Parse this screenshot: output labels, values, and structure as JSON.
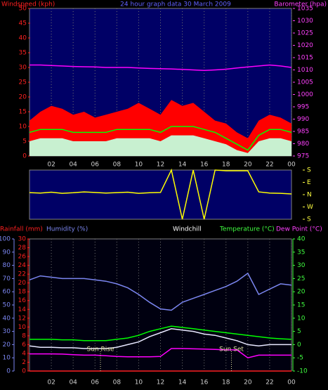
{
  "chart_data": [
    {
      "type": "line",
      "title": "24 hour graph data  30 March 2009",
      "ylabel": "Windspeed (kph)",
      "y2label": "Barometer (hpa)",
      "x": [
        0,
        1,
        2,
        3,
        4,
        5,
        6,
        7,
        8,
        9,
        10,
        11,
        12,
        13,
        14,
        15,
        16,
        17,
        18,
        19,
        20,
        21,
        22,
        23,
        24
      ],
      "xlim": [
        0,
        24
      ],
      "xticks": [
        {
          "value": 2,
          "label": "02"
        },
        {
          "value": 4,
          "label": "04"
        },
        {
          "value": 6,
          "label": "06"
        },
        {
          "value": 8,
          "label": "08"
        },
        10,
        12,
        14,
        16,
        18,
        20,
        22,
        {
          "value": 24,
          "label": "00"
        }
      ],
      "ylim": [
        0,
        50
      ],
      "yticks": [
        0,
        5,
        10,
        15,
        20,
        25,
        30,
        35,
        40,
        45,
        50
      ],
      "y2lim": [
        975,
        1035
      ],
      "y2ticks": [
        975,
        980,
        985,
        990,
        995,
        1000,
        1005,
        1010,
        1015,
        1020,
        1025,
        1030,
        1035
      ],
      "grid": true,
      "series": [
        {
          "color": "#ff0000",
          "fill": true,
          "values": [
            12,
            15,
            17,
            16,
            14,
            15,
            13,
            14,
            15,
            16,
            18,
            16,
            14,
            19,
            17,
            18,
            15,
            12,
            11,
            8,
            6,
            12,
            14,
            13,
            11
          ]
        },
        {
          "color": "#c8f0d0",
          "fill": true,
          "values": [
            5,
            6,
            6,
            6,
            5,
            5,
            5,
            5,
            6,
            6,
            6,
            6,
            5,
            7,
            7,
            7,
            6,
            5,
            4,
            2,
            1,
            5,
            6,
            6,
            5
          ]
        },
        {
          "color": "#00ff00",
          "values": [
            8,
            9,
            9,
            9,
            8,
            8,
            8,
            8,
            9,
            9,
            9,
            9,
            8,
            10,
            10,
            10,
            9,
            8,
            6,
            4,
            2,
            7,
            9,
            9,
            8
          ]
        },
        {
          "color": "#ff00ff",
          "axis": "y2",
          "values": [
            1012,
            1012,
            1011.8,
            1011.6,
            1011.4,
            1011.3,
            1011.2,
            1011,
            1011,
            1011,
            1010.8,
            1010.6,
            1010.5,
            1010.4,
            1010.2,
            1010,
            1009.8,
            1010,
            1010.3,
            1010.8,
            1011.2,
            1011.6,
            1012,
            1011.6,
            1011
          ]
        }
      ]
    },
    {
      "type": "line",
      "x": [
        0,
        1,
        2,
        3,
        4,
        5,
        6,
        7,
        8,
        9,
        10,
        11,
        12,
        13,
        14,
        15,
        16,
        17,
        18,
        19,
        20,
        21,
        22,
        23,
        24
      ],
      "xlim": [
        0,
        24
      ],
      "ylim": [
        180,
        540
      ],
      "yticks": [
        {
          "value": 540,
          "label": "S"
        },
        {
          "value": 450,
          "label": "E"
        },
        {
          "value": 360,
          "label": "N"
        },
        {
          "value": 270,
          "label": "W"
        },
        {
          "value": 180,
          "label": "S"
        }
      ],
      "series": [
        {
          "color": "#ffff00",
          "values": [
            375,
            372,
            378,
            370,
            374,
            380,
            376,
            372,
            375,
            378,
            370,
            374,
            376,
            540,
            180,
            540,
            180,
            540,
            535,
            535,
            535,
            380,
            372,
            370,
            365
          ]
        }
      ]
    },
    {
      "type": "line",
      "x": [
        0,
        1,
        2,
        3,
        4,
        5,
        6,
        7,
        8,
        9,
        10,
        11,
        12,
        13,
        14,
        15,
        16,
        17,
        18,
        19,
        20,
        21,
        22,
        23,
        24
      ],
      "xlim": [
        0,
        24
      ],
      "xticks": [
        {
          "value": 2,
          "label": "02"
        },
        {
          "value": 4,
          "label": "04"
        },
        {
          "value": 6,
          "label": "06"
        },
        {
          "value": 8,
          "label": "08"
        },
        10,
        12,
        14,
        16,
        18,
        20,
        22,
        {
          "value": 24,
          "label": "00"
        }
      ],
      "ylim": [
        0,
        100
      ],
      "yticks": [
        0,
        10,
        20,
        30,
        40,
        50,
        60,
        70,
        80,
        90,
        100
      ],
      "y2lim": [
        -10,
        40
      ],
      "y2ticks": [
        -10,
        -5,
        0,
        5,
        10,
        15,
        20,
        25,
        30,
        35,
        40
      ],
      "y3lim": [
        0,
        30
      ],
      "y3ticks": [
        0,
        2,
        4,
        6,
        8,
        10,
        12,
        14,
        16,
        18,
        20,
        22,
        24,
        26,
        28,
        30
      ],
      "grid": true,
      "annotations": [
        {
          "text": "Sun Rise",
          "x": 6.5
        },
        {
          "text": "Sun Set",
          "x": 18.5
        }
      ],
      "series": [
        {
          "name": "Rainfall (mm)",
          "color": "#ff2020",
          "axis": "y3",
          "values": [
            0,
            0,
            0,
            0,
            0,
            0,
            0,
            0,
            0,
            0,
            0,
            0,
            0,
            0,
            0,
            0,
            0,
            0,
            0,
            0,
            0,
            0,
            0,
            0,
            0
          ]
        },
        {
          "name": "Humidity (%)",
          "color": "#7b86f0",
          "values": [
            69,
            72,
            71,
            70,
            70,
            70,
            69,
            68,
            66,
            63,
            58,
            52,
            47,
            46,
            52,
            55,
            58,
            61,
            64,
            68,
            74,
            58,
            62,
            66,
            65
          ]
        },
        {
          "name": "Windchill",
          "color": "#e8e8ff",
          "axis": "y2",
          "values": [
            -0.5,
            -1,
            -1,
            -1.2,
            -1.2,
            -1.5,
            -1.5,
            -1.5,
            -1,
            0,
            1,
            3,
            4.5,
            6,
            5.5,
            5,
            4,
            3.5,
            2.5,
            1.5,
            0,
            -0.5,
            0,
            0,
            0
          ]
        },
        {
          "name": "Temperature (°C)",
          "color": "#00ff00",
          "axis": "y2",
          "values": [
            2,
            2,
            2,
            1.8,
            1.8,
            1.5,
            1.5,
            1.5,
            2,
            2.5,
            3.5,
            5,
            6,
            7,
            6.5,
            6,
            5.5,
            5,
            4.5,
            4,
            3.5,
            3,
            2.5,
            2.2,
            2
          ]
        },
        {
          "name": "Dew Point (°C)",
          "color": "#ff00ff",
          "axis": "y2",
          "values": [
            -3.5,
            -3.5,
            -3.5,
            -3.6,
            -3.8,
            -4,
            -4,
            -4.2,
            -4.5,
            -4.6,
            -4.6,
            -4.6,
            -4.5,
            -1.5,
            -1.5,
            -1.6,
            -1.7,
            -1.8,
            -2,
            -2,
            -5,
            -4,
            -4,
            -4,
            -4
          ]
        }
      ]
    }
  ]
}
